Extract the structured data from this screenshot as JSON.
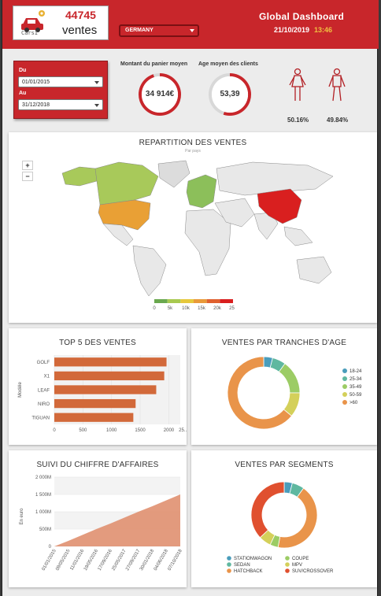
{
  "header": {
    "logo_text": "CarsI",
    "sales_count": "44745",
    "sales_label": "ventes",
    "country": "GERMANY",
    "title": "Global Dashboard",
    "date": "21/10/2019",
    "time": "13:46"
  },
  "filters": {
    "from_label": "Du",
    "from_value": "01/01/2015",
    "to_label": "Au",
    "to_value": "31/12/2018"
  },
  "kpis": {
    "basket_title": "Montant du panier moyen",
    "basket_value": "34 914€",
    "basket_fraction": 0.95,
    "age_title": "Age moyen des clients",
    "age_value": "53,39",
    "age_fraction": 0.55,
    "female_pct": "50.16%",
    "male_pct": "49.84%"
  },
  "map": {
    "title": "REPARTITION DES VENTES",
    "subtitle": "Par pays",
    "zoom_in": "+",
    "zoom_out": "−",
    "legend_ticks": [
      "0",
      "5k",
      "10k",
      "15k",
      "20k",
      "25k"
    ],
    "legend_colors": [
      "#6aa84f",
      "#a8c950",
      "#e6c83c",
      "#e99a3a",
      "#e0612f",
      "#d91f1f"
    ],
    "country_colors": {
      "china": "#d91f1f",
      "usa": "#e9a035",
      "canada": "#a8c95a",
      "alaska": "#a8c95a",
      "greenland": "#dcdcdc",
      "europe": "#8cbf5a",
      "default": "#e8e8e8"
    }
  },
  "top5": {
    "title": "TOP 5 DES VENTES",
    "ylabel": "Modèle",
    "bar_color": "#d2693a"
  },
  "age": {
    "title": "VENTES PAR TRANCHES D'AGE"
  },
  "revenue": {
    "title": "SUIVI DU CHIFFRE D'AFFAIRES",
    "ylabel": "En euro"
  },
  "segments": {
    "title": "VENTES PAR SEGMENTS"
  },
  "chart_data": [
    {
      "id": "top5",
      "type": "bar",
      "orientation": "horizontal",
      "title": "TOP 5 DES VENTES",
      "ylabel": "Modèle",
      "categories": [
        "GOLF",
        "X1",
        "LEAF",
        "NIRO",
        "TIGUAN"
      ],
      "values": [
        1960,
        1920,
        1780,
        1420,
        1380
      ],
      "xlim": [
        0,
        2200
      ],
      "xticks": [
        "0",
        "500",
        "1000",
        "1500",
        "2000",
        "25..."
      ],
      "xtick_values": [
        0,
        500,
        1000,
        1500,
        2000,
        2500
      ]
    },
    {
      "id": "age",
      "type": "pie",
      "title": "VENTES PAR TRANCHES D'AGE",
      "categories": [
        "18-24",
        "25-34",
        "35-49",
        "50-59",
        ">60"
      ],
      "values": [
        4,
        6,
        15,
        11,
        64
      ],
      "colors": [
        "#4a9dbb",
        "#5fb8a0",
        "#9ccc65",
        "#d4d05a",
        "#e9944a"
      ],
      "legend": "right"
    },
    {
      "id": "revenue",
      "type": "area",
      "title": "SUIVI DU CHIFFRE D'AFFAIRES",
      "ylabel": "En euro",
      "x": [
        "01/01/2015",
        "09/05/2015",
        "11/01/2016",
        "19/05/2016",
        "17/09/2016",
        "25/05/2017",
        "27/09/2017",
        "30/01/2018",
        "04/06/2018",
        "07/10/2018"
      ],
      "values": [
        0,
        160,
        330,
        500,
        660,
        830,
        1000,
        1160,
        1330,
        1500
      ],
      "yticks": [
        "0",
        "500M",
        "1 000M",
        "1 500M",
        "2 000M"
      ],
      "ytick_values": [
        0,
        500,
        1000,
        1500,
        2000
      ],
      "ylim": [
        0,
        2000
      ],
      "color": "#e09070"
    },
    {
      "id": "segments",
      "type": "pie",
      "title": "VENTES PAR SEGMENTS",
      "categories": [
        "STATIONWAGON",
        "SEDAN",
        "HATCHBACK",
        "COUPE",
        "MPV",
        "SUV/CROSSOVER"
      ],
      "values": [
        4,
        6,
        43,
        4,
        6,
        37
      ],
      "colors": [
        "#4a9dbb",
        "#5fb8a0",
        "#e9944a",
        "#9ccc65",
        "#d4d05a",
        "#e0502f"
      ],
      "legend": "bottom"
    }
  ]
}
